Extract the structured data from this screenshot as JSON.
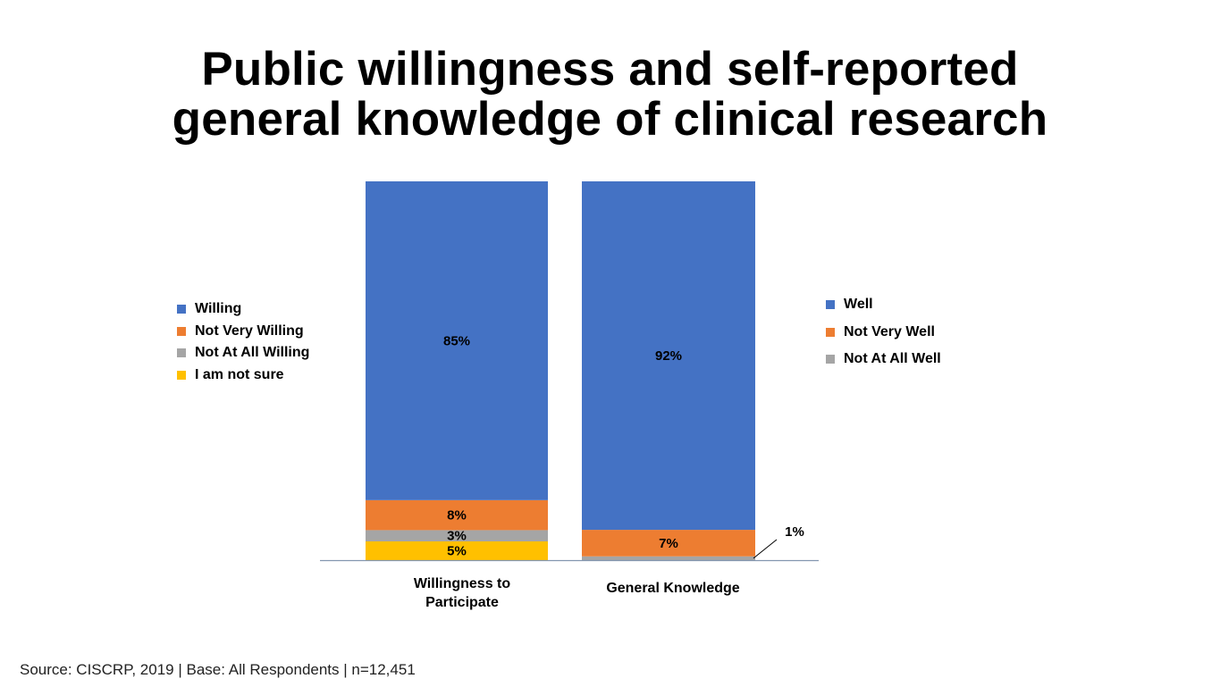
{
  "title_lines": [
    "Public willingness and self-reported",
    "general knowledge of clinical research"
  ],
  "source": "Source: CISCRP, 2019 | Base: All Respondents | n=12,451",
  "chart_data": {
    "type": "bar",
    "stacked": true,
    "percent": true,
    "categories": [
      [
        "Willingness to",
        "Participate"
      ],
      [
        "General Knowledge"
      ]
    ],
    "stacks": [
      {
        "category": "Willingness to Participate",
        "segments": [
          {
            "name": "I am not sure",
            "value": 5,
            "color": "#FFC000",
            "label": "5%"
          },
          {
            "name": "Not At All Willing",
            "value": 3,
            "color": "#A5A5A5",
            "label": "3%"
          },
          {
            "name": "Not Very Willing",
            "value": 8,
            "color": "#ED7D31",
            "label": "8%"
          },
          {
            "name": "Willing",
            "value": 85,
            "color": "#4472C4",
            "label": "85%"
          }
        ]
      },
      {
        "category": "General Knowledge",
        "segments": [
          {
            "name": "Not At All Well",
            "value": 1,
            "color": "#A5A5A5",
            "label": "1%",
            "callout": true
          },
          {
            "name": "Not Very Well",
            "value": 7,
            "color": "#ED7D31",
            "label": "7%"
          },
          {
            "name": "Well",
            "value": 92,
            "color": "#4472C4",
            "label": "92%"
          }
        ]
      }
    ],
    "legends": {
      "left": [
        {
          "name": "Willing",
          "color": "#4472C4"
        },
        {
          "name": "Not Very Willing",
          "color": "#ED7D31"
        },
        {
          "name": "Not At All Willing",
          "color": "#A5A5A5"
        },
        {
          "name": "I am not sure",
          "color": "#FFC000"
        }
      ],
      "right": [
        {
          "name": "Well",
          "color": "#4472C4"
        },
        {
          "name": "Not Very Well",
          "color": "#ED7D31"
        },
        {
          "name": "Not At All Well",
          "color": "#A5A5A5"
        }
      ]
    },
    "axis_color": "#8497B0"
  }
}
